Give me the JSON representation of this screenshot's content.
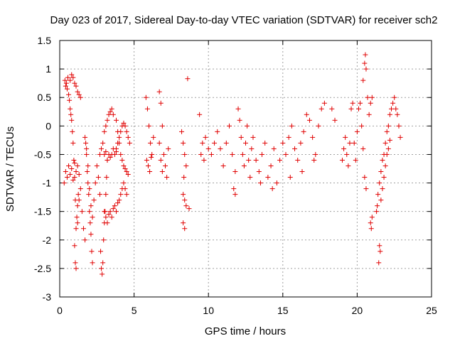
{
  "chart_data": {
    "type": "scatter",
    "title": "Day 023 of 2017, Sidereal Day-to-day VTEC variation (SDTVAR) for receiver sch2",
    "xlabel": "GPS time / hours",
    "ylabel": "SDTVAR / TECUs",
    "xlim": [
      0,
      25
    ],
    "ylim": [
      -3,
      1.5
    ],
    "xticks": [
      "0",
      "5",
      "10",
      "15",
      "20",
      "25"
    ],
    "yticks": [
      "-3",
      "-2.5",
      "-2",
      "-1.5",
      "-1",
      "-0.5",
      "0",
      "0.5",
      "1",
      "1.5"
    ],
    "grid": true,
    "marker": "+",
    "color": "#e00000",
    "series": [
      {
        "name": "SDTVAR",
        "points": [
          [
            0.3,
            -1.0
          ],
          [
            0.35,
            0.8
          ],
          [
            0.4,
            0.7
          ],
          [
            0.45,
            0.75
          ],
          [
            0.5,
            0.65
          ],
          [
            0.55,
            0.85
          ],
          [
            0.6,
            0.55
          ],
          [
            0.65,
            0.45
          ],
          [
            0.7,
            0.3
          ],
          [
            0.75,
            0.2
          ],
          [
            0.8,
            0.1
          ],
          [
            0.85,
            -0.1
          ],
          [
            0.9,
            -0.3
          ],
          [
            0.95,
            -0.6
          ],
          [
            1.0,
            -0.9
          ],
          [
            1.05,
            -1.3
          ],
          [
            1.1,
            -1.8
          ],
          [
            1.15,
            -1.6
          ],
          [
            1.2,
            -1.4
          ],
          [
            1.25,
            -1.2
          ],
          [
            0.4,
            -0.8
          ],
          [
            0.5,
            -0.9
          ],
          [
            0.6,
            -0.7
          ],
          [
            0.7,
            -0.85
          ],
          [
            0.8,
            -0.75
          ],
          [
            0.9,
            -0.95
          ],
          [
            1.0,
            -0.65
          ],
          [
            1.1,
            -0.8
          ],
          [
            1.2,
            -0.7
          ],
          [
            1.3,
            -0.85
          ],
          [
            0.7,
            0.8
          ],
          [
            0.8,
            0.9
          ],
          [
            0.9,
            0.85
          ],
          [
            1.0,
            0.75
          ],
          [
            1.1,
            0.7
          ],
          [
            1.2,
            0.6
          ],
          [
            1.3,
            0.55
          ],
          [
            1.4,
            0.5
          ],
          [
            1.0,
            -2.1
          ],
          [
            1.05,
            -2.4
          ],
          [
            1.1,
            -2.5
          ],
          [
            1.2,
            -1.7
          ],
          [
            1.3,
            -1.3
          ],
          [
            1.4,
            -1.1
          ],
          [
            1.5,
            -1.5
          ],
          [
            1.6,
            -1.8
          ],
          [
            1.7,
            -2.0
          ],
          [
            1.7,
            -0.2
          ],
          [
            1.75,
            -0.3
          ],
          [
            1.8,
            -0.5
          ],
          [
            1.85,
            -0.8
          ],
          [
            1.9,
            -1.0
          ],
          [
            1.95,
            -1.2
          ],
          [
            2.0,
            -1.5
          ],
          [
            2.05,
            -1.7
          ],
          [
            2.1,
            -1.9
          ],
          [
            2.15,
            -2.2
          ],
          [
            2.2,
            -2.4
          ],
          [
            1.8,
            -0.4
          ],
          [
            1.9,
            -0.7
          ],
          [
            2.0,
            -1.1
          ],
          [
            2.1,
            -1.4
          ],
          [
            2.2,
            -1.6
          ],
          [
            2.3,
            -1.3
          ],
          [
            2.4,
            -1.0
          ],
          [
            2.5,
            -0.7
          ],
          [
            2.6,
            -0.9
          ],
          [
            2.7,
            -1.2
          ],
          [
            2.75,
            -2.2
          ],
          [
            2.8,
            -2.5
          ],
          [
            2.85,
            -2.6
          ],
          [
            2.9,
            -2.4
          ],
          [
            2.95,
            -2.0
          ],
          [
            3.0,
            -1.7
          ],
          [
            3.05,
            -1.5
          ],
          [
            3.1,
            -1.2
          ],
          [
            3.15,
            -0.9
          ],
          [
            3.2,
            -0.6
          ],
          [
            2.7,
            -0.5
          ],
          [
            2.8,
            -0.4
          ],
          [
            2.9,
            -0.3
          ],
          [
            3.0,
            -0.1
          ],
          [
            3.1,
            0.0
          ],
          [
            3.2,
            0.1
          ],
          [
            3.3,
            0.2
          ],
          [
            3.4,
            0.25
          ],
          [
            3.5,
            0.3
          ],
          [
            3.6,
            0.2
          ],
          [
            3.0,
            -1.5
          ],
          [
            3.1,
            -1.6
          ],
          [
            3.2,
            -1.7
          ],
          [
            3.3,
            -1.55
          ],
          [
            3.4,
            -1.5
          ],
          [
            3.5,
            -1.6
          ],
          [
            3.6,
            -1.45
          ],
          [
            3.7,
            -1.4
          ],
          [
            3.8,
            -1.5
          ],
          [
            3.9,
            -1.35
          ],
          [
            4.0,
            -1.3
          ],
          [
            4.1,
            -1.2
          ],
          [
            4.2,
            -1.1
          ],
          [
            4.3,
            -1.0
          ],
          [
            4.4,
            -1.1
          ],
          [
            4.5,
            -1.2
          ],
          [
            3.0,
            -0.5
          ],
          [
            3.1,
            -0.45
          ],
          [
            3.2,
            -0.6
          ],
          [
            3.3,
            -0.5
          ],
          [
            3.4,
            -0.55
          ],
          [
            3.5,
            -0.5
          ],
          [
            3.6,
            -0.4
          ],
          [
            3.7,
            -0.5
          ],
          [
            3.8,
            -0.45
          ],
          [
            3.8,
            0.1
          ],
          [
            3.9,
            -0.1
          ],
          [
            4.0,
            -0.3
          ],
          [
            4.1,
            -0.5
          ],
          [
            4.2,
            -0.6
          ],
          [
            4.3,
            -0.7
          ],
          [
            4.4,
            -0.75
          ],
          [
            4.5,
            -0.8
          ],
          [
            4.6,
            -0.85
          ],
          [
            3.8,
            -0.4
          ],
          [
            3.9,
            -0.3
          ],
          [
            4.0,
            -0.2
          ],
          [
            4.1,
            -0.1
          ],
          [
            4.2,
            0.0
          ],
          [
            4.3,
            0.05
          ],
          [
            4.4,
            0.0
          ],
          [
            4.5,
            -0.1
          ],
          [
            4.6,
            -0.2
          ],
          [
            4.7,
            -0.3
          ],
          [
            5.8,
            0.5
          ],
          [
            5.9,
            0.3
          ],
          [
            6.0,
            0.0
          ],
          [
            6.1,
            -0.3
          ],
          [
            6.2,
            -0.5
          ],
          [
            6.3,
            -0.2
          ],
          [
            5.85,
            -0.6
          ],
          [
            5.95,
            -0.7
          ],
          [
            6.05,
            -0.8
          ],
          [
            6.15,
            -0.55
          ],
          [
            6.7,
            0.6
          ],
          [
            6.8,
            0.4
          ],
          [
            6.9,
            0.0
          ],
          [
            6.7,
            -0.3
          ],
          [
            6.8,
            -0.6
          ],
          [
            6.9,
            -0.8
          ],
          [
            7.0,
            -0.5
          ],
          [
            7.1,
            -0.7
          ],
          [
            7.2,
            -0.9
          ],
          [
            7.3,
            -0.4
          ],
          [
            8.2,
            -0.1
          ],
          [
            8.3,
            -0.3
          ],
          [
            8.4,
            -0.5
          ],
          [
            8.5,
            -0.7
          ],
          [
            8.6,
            0.83
          ],
          [
            8.3,
            -1.2
          ],
          [
            8.4,
            -1.3
          ],
          [
            8.5,
            -1.4
          ],
          [
            8.3,
            -1.7
          ],
          [
            8.4,
            -1.8
          ],
          [
            8.7,
            -1.45
          ],
          [
            8.35,
            -0.9
          ],
          [
            9.4,
            0.2
          ],
          [
            9.5,
            -0.5
          ],
          [
            9.6,
            -0.3
          ],
          [
            9.7,
            -0.6
          ],
          [
            9.8,
            -0.2
          ],
          [
            10.0,
            -0.4
          ],
          [
            10.2,
            -0.5
          ],
          [
            10.4,
            -0.3
          ],
          [
            10.6,
            -0.1
          ],
          [
            10.8,
            -0.4
          ],
          [
            11.0,
            -0.7
          ],
          [
            11.2,
            -0.3
          ],
          [
            11.4,
            0.0
          ],
          [
            11.6,
            -0.5
          ],
          [
            11.8,
            -0.8
          ],
          [
            12.0,
            0.3
          ],
          [
            12.1,
            0.1
          ],
          [
            12.2,
            -0.2
          ],
          [
            12.3,
            -0.5
          ],
          [
            12.4,
            -0.7
          ],
          [
            12.5,
            -0.3
          ],
          [
            12.6,
            0.0
          ],
          [
            12.7,
            -0.6
          ],
          [
            12.8,
            -0.9
          ],
          [
            12.9,
            -0.4
          ],
          [
            13.0,
            -0.2
          ],
          [
            13.2,
            -0.6
          ],
          [
            13.4,
            -0.8
          ],
          [
            13.6,
            -0.5
          ],
          [
            13.8,
            -0.3
          ],
          [
            14.0,
            -0.9
          ],
          [
            14.2,
            -0.7
          ],
          [
            14.4,
            -0.4
          ],
          [
            14.6,
            -1.0
          ],
          [
            14.8,
            -0.6
          ],
          [
            15.0,
            -0.3
          ],
          [
            15.2,
            -0.5
          ],
          [
            15.4,
            -0.2
          ],
          [
            15.6,
            0.0
          ],
          [
            15.8,
            -0.4
          ],
          [
            16.0,
            -0.6
          ],
          [
            16.2,
            -0.3
          ],
          [
            16.4,
            -0.1
          ],
          [
            16.6,
            0.2
          ],
          [
            16.8,
            0.1
          ],
          [
            17.0,
            -0.2
          ],
          [
            17.2,
            -0.5
          ],
          [
            17.4,
            0.0
          ],
          [
            17.6,
            0.3
          ],
          [
            17.8,
            0.4
          ],
          [
            11.7,
            -1.1
          ],
          [
            11.8,
            -1.2
          ],
          [
            13.5,
            -1.0
          ],
          [
            14.3,
            -1.1
          ],
          [
            15.5,
            -0.9
          ],
          [
            16.3,
            -0.8
          ],
          [
            17.1,
            -0.6
          ],
          [
            18.3,
            0.3
          ],
          [
            18.5,
            0.1
          ],
          [
            19.0,
            -0.6
          ],
          [
            19.1,
            -0.4
          ],
          [
            19.2,
            -0.2
          ],
          [
            19.3,
            -0.5
          ],
          [
            19.4,
            -0.7
          ],
          [
            19.5,
            -0.3
          ],
          [
            19.6,
            0.3
          ],
          [
            19.7,
            0.4
          ],
          [
            19.8,
            -0.3
          ],
          [
            19.9,
            -0.6
          ],
          [
            20.0,
            -0.1
          ],
          [
            20.1,
            0.3
          ],
          [
            20.2,
            0.4
          ],
          [
            20.3,
            0.0
          ],
          [
            20.4,
            -0.4
          ],
          [
            20.5,
            -0.9
          ],
          [
            20.6,
            -1.1
          ],
          [
            20.4,
            0.8
          ],
          [
            20.5,
            1.1
          ],
          [
            20.55,
            1.25
          ],
          [
            20.6,
            1.0
          ],
          [
            20.7,
            0.5
          ],
          [
            20.8,
            0.2
          ],
          [
            20.9,
            0.4
          ],
          [
            21.0,
            0.5
          ],
          [
            20.9,
            -1.7
          ],
          [
            21.0,
            -1.6
          ],
          [
            20.95,
            -1.8
          ],
          [
            21.3,
            -1.5
          ],
          [
            21.35,
            -1.4
          ],
          [
            21.4,
            -1.2
          ],
          [
            21.5,
            -1.0
          ],
          [
            21.6,
            -0.8
          ],
          [
            21.7,
            -0.6
          ],
          [
            21.8,
            -0.5
          ],
          [
            21.9,
            -0.3
          ],
          [
            22.0,
            -0.1
          ],
          [
            22.1,
            0.0
          ],
          [
            22.2,
            0.2
          ],
          [
            22.3,
            0.3
          ],
          [
            22.4,
            0.4
          ],
          [
            22.5,
            0.5
          ],
          [
            22.6,
            0.3
          ],
          [
            22.7,
            0.2
          ],
          [
            22.8,
            0.0
          ],
          [
            22.9,
            -0.2
          ],
          [
            21.5,
            -2.1
          ],
          [
            21.55,
            -2.2
          ],
          [
            21.45,
            -2.4
          ],
          [
            21.6,
            -1.3
          ],
          [
            21.7,
            -1.1
          ],
          [
            21.8,
            -0.9
          ],
          [
            21.9,
            -0.7
          ],
          [
            22.0,
            -0.5
          ],
          [
            22.1,
            -0.4
          ],
          [
            22.2,
            -0.25
          ]
        ]
      }
    ]
  }
}
